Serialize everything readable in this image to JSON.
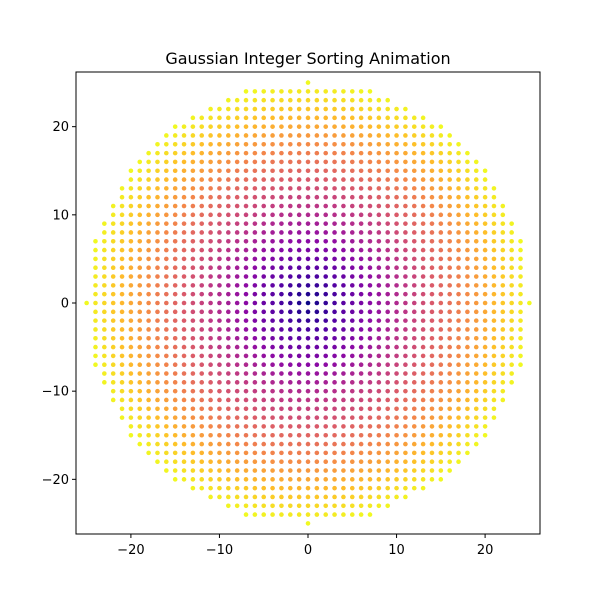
{
  "chart_data": {
    "type": "scatter",
    "title": "Gaussian Integer Sorting Animation",
    "xlabel": "",
    "ylabel": "",
    "xlim": [
      -26.2,
      26.2
    ],
    "ylim": [
      -26.2,
      26.2
    ],
    "xticks": [
      -20,
      -10,
      0,
      10,
      20
    ],
    "yticks": [
      -20,
      -10,
      0,
      10,
      20
    ],
    "xtick_labels": [
      "−20",
      "−10",
      "0",
      "10",
      "20"
    ],
    "ytick_labels": [
      "−20",
      "−10",
      "0",
      "10",
      "20"
    ],
    "grid": false,
    "legend": "none",
    "point_set": "all integer points (a, b) with a² + b² ≤ 25²",
    "radius": 25,
    "color_by": "distance from origin",
    "colormap": "plasma",
    "colormap_stops": [
      "#0d0887",
      "#5302a3",
      "#8b0aa5",
      "#b83289",
      "#db5c68",
      "#f48849",
      "#febd2a",
      "#f0f921"
    ]
  }
}
